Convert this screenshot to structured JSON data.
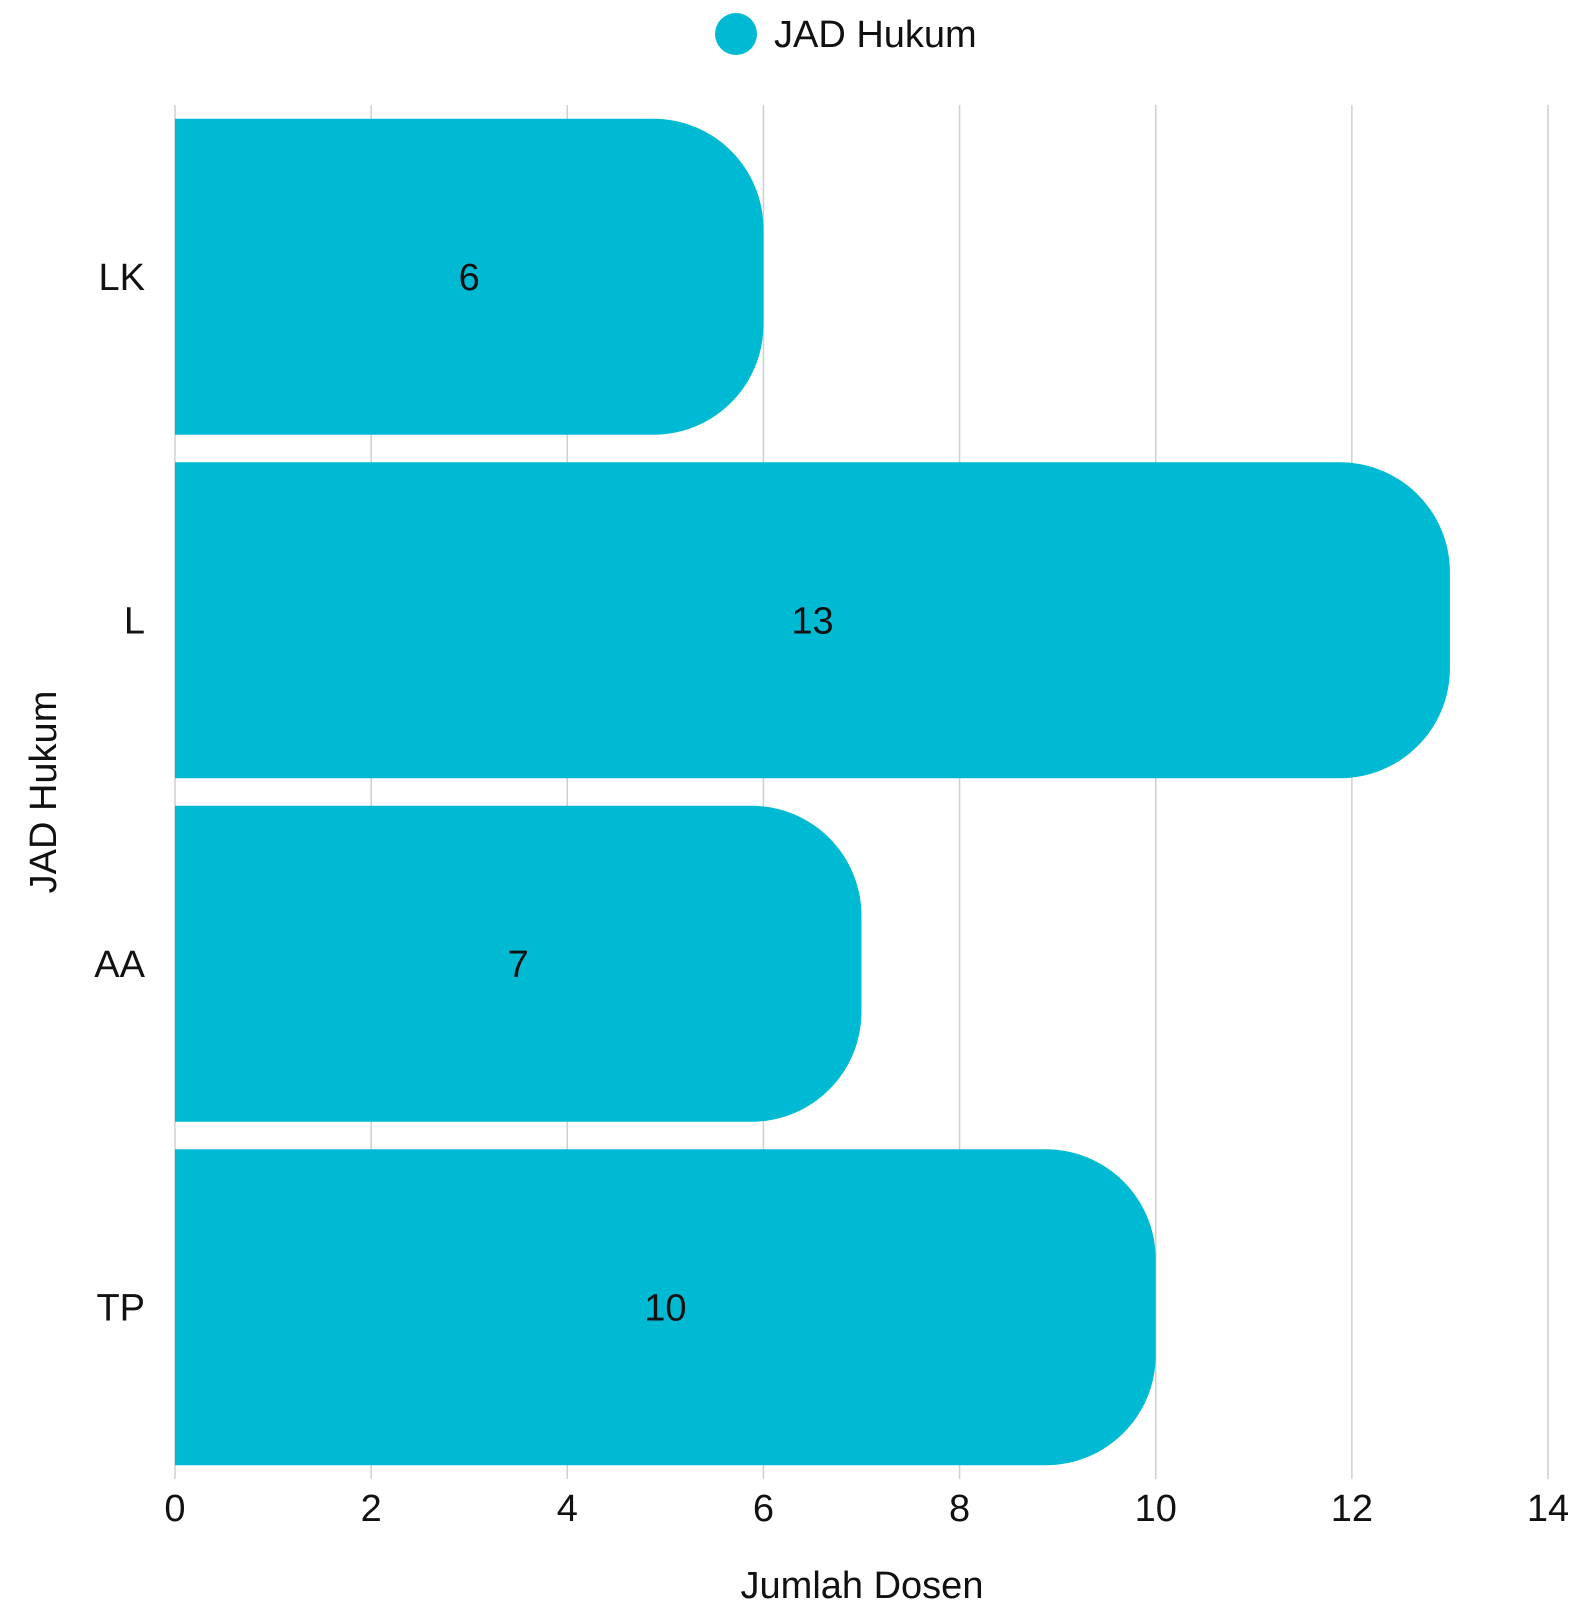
{
  "chart_data": {
    "type": "bar",
    "orientation": "horizontal",
    "categories": [
      "LK",
      "L",
      "AA",
      "TP"
    ],
    "series": [
      {
        "name": "JAD Hukum",
        "values": [
          6,
          13,
          7,
          10
        ],
        "color": "#00BAD3"
      }
    ],
    "xlabel": "Jumlah Dosen",
    "ylabel": "JAD Hukum",
    "xlim": [
      0,
      14
    ],
    "x_ticks": [
      0,
      2,
      4,
      6,
      8,
      10,
      12,
      14
    ],
    "grid": true,
    "legend_position": "top-center",
    "data_labels": true
  }
}
